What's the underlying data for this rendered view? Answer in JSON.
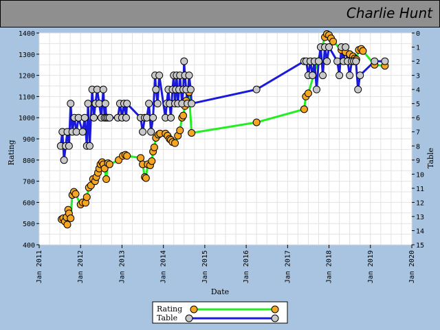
{
  "header": {
    "player_name": "Charlie Hunt"
  },
  "chart_data": {
    "type": "line",
    "title": "",
    "xlabel": "Date",
    "ylabel": "Rating",
    "y2label": "Table",
    "xlim": [
      "Jan 2011",
      "Jan 2020"
    ],
    "ylim": [
      400,
      1400
    ],
    "y2lim": [
      15,
      0
    ],
    "x_ticks": [
      "Jan 2011",
      "Jan 2012",
      "Jan 2013",
      "Jan 2014",
      "Jan 2015",
      "Jan 2016",
      "Jan 2017",
      "Jan 2018",
      "Jan 2019",
      "Jan 2020"
    ],
    "y_ticks": [
      400,
      500,
      600,
      700,
      800,
      900,
      1000,
      1100,
      1200,
      1300,
      1400
    ],
    "y2_ticks": [
      0,
      1,
      2,
      3,
      4,
      5,
      6,
      7,
      8,
      9,
      10,
      11,
      12,
      13,
      14,
      15
    ],
    "grid": true,
    "legend_position": "bottom-center",
    "series": [
      {
        "name": "Rating",
        "axis": "left",
        "line_color": "#22ee22",
        "marker_color": "#f5a623",
        "points": [
          [
            2011.54,
            520
          ],
          [
            2011.58,
            525
          ],
          [
            2011.62,
            510
          ],
          [
            2011.66,
            530
          ],
          [
            2011.68,
            495
          ],
          [
            2011.7,
            565
          ],
          [
            2011.72,
            548
          ],
          [
            2011.76,
            525
          ],
          [
            2011.8,
            635
          ],
          [
            2011.84,
            650
          ],
          [
            2011.88,
            640
          ],
          [
            2012.0,
            590
          ],
          [
            2012.05,
            600
          ],
          [
            2012.12,
            598
          ],
          [
            2012.15,
            625
          ],
          [
            2012.2,
            670
          ],
          [
            2012.25,
            680
          ],
          [
            2012.3,
            710
          ],
          [
            2012.35,
            700
          ],
          [
            2012.38,
            720
          ],
          [
            2012.42,
            740
          ],
          [
            2012.45,
            760
          ],
          [
            2012.48,
            780
          ],
          [
            2012.52,
            790
          ],
          [
            2012.55,
            780
          ],
          [
            2012.58,
            760
          ],
          [
            2012.62,
            710
          ],
          [
            2012.66,
            785
          ],
          [
            2012.7,
            780
          ],
          [
            2012.92,
            800
          ],
          [
            2013.02,
            820
          ],
          [
            2013.08,
            825
          ],
          [
            2013.12,
            820
          ],
          [
            2013.45,
            810
          ],
          [
            2013.5,
            780
          ],
          [
            2013.55,
            720
          ],
          [
            2013.58,
            715
          ],
          [
            2013.62,
            780
          ],
          [
            2013.68,
            775
          ],
          [
            2013.72,
            795
          ],
          [
            2013.75,
            840
          ],
          [
            2013.78,
            860
          ],
          [
            2013.82,
            905
          ],
          [
            2013.88,
            920
          ],
          [
            2013.92,
            925
          ],
          [
            2014.05,
            925
          ],
          [
            2014.1,
            915
          ],
          [
            2014.15,
            900
          ],
          [
            2014.18,
            895
          ],
          [
            2014.22,
            885
          ],
          [
            2014.28,
            880
          ],
          [
            2014.35,
            915
          ],
          [
            2014.4,
            940
          ],
          [
            2014.45,
            1000
          ],
          [
            2014.48,
            1010
          ],
          [
            2014.52,
            1055
          ],
          [
            2014.55,
            1080
          ],
          [
            2014.58,
            1130
          ],
          [
            2014.62,
            1120
          ],
          [
            2014.68,
            928
          ],
          [
            2016.25,
            978
          ],
          [
            2017.4,
            1040
          ],
          [
            2017.44,
            1100
          ],
          [
            2017.5,
            1115
          ],
          [
            2017.9,
            1380
          ],
          [
            2017.95,
            1395
          ],
          [
            2018.0,
            1390
          ],
          [
            2018.05,
            1375
          ],
          [
            2018.1,
            1360
          ],
          [
            2018.3,
            1320
          ],
          [
            2018.4,
            1310
          ],
          [
            2018.5,
            1300
          ],
          [
            2018.58,
            1290
          ],
          [
            2018.62,
            1280
          ],
          [
            2018.66,
            1275
          ],
          [
            2018.72,
            1320
          ],
          [
            2018.78,
            1325
          ],
          [
            2018.82,
            1315
          ],
          [
            2019.1,
            1250
          ],
          [
            2019.35,
            1245
          ]
        ]
      },
      {
        "name": "Table",
        "axis": "right",
        "line_color": "#1a1adc",
        "marker_color": "#c8c8c8",
        "points": [
          [
            2011.52,
            8
          ],
          [
            2011.56,
            7
          ],
          [
            2011.6,
            9
          ],
          [
            2011.64,
            8
          ],
          [
            2011.68,
            7
          ],
          [
            2011.72,
            8
          ],
          [
            2011.76,
            5
          ],
          [
            2011.8,
            7
          ],
          [
            2011.85,
            6
          ],
          [
            2011.9,
            7
          ],
          [
            2011.95,
            6
          ],
          [
            2012.05,
            7
          ],
          [
            2012.1,
            6
          ],
          [
            2012.15,
            8
          ],
          [
            2012.18,
            5
          ],
          [
            2012.22,
            8
          ],
          [
            2012.28,
            4
          ],
          [
            2012.32,
            6
          ],
          [
            2012.36,
            5
          ],
          [
            2012.4,
            4
          ],
          [
            2012.45,
            5
          ],
          [
            2012.5,
            6
          ],
          [
            2012.55,
            4
          ],
          [
            2012.58,
            6
          ],
          [
            2012.6,
            5
          ],
          [
            2012.62,
            6
          ],
          [
            2012.66,
            6
          ],
          [
            2012.7,
            6
          ],
          [
            2012.9,
            6
          ],
          [
            2012.95,
            5
          ],
          [
            2013.0,
            6
          ],
          [
            2013.05,
            5
          ],
          [
            2013.1,
            6
          ],
          [
            2013.12,
            5
          ],
          [
            2013.45,
            6
          ],
          [
            2013.5,
            7
          ],
          [
            2013.55,
            6
          ],
          [
            2013.6,
            6
          ],
          [
            2013.65,
            5
          ],
          [
            2013.7,
            7
          ],
          [
            2013.75,
            6
          ],
          [
            2013.8,
            3
          ],
          [
            2013.82,
            4
          ],
          [
            2013.86,
            5
          ],
          [
            2013.9,
            3
          ],
          [
            2014.05,
            6
          ],
          [
            2014.08,
            5
          ],
          [
            2014.12,
            4
          ],
          [
            2014.15,
            5
          ],
          [
            2014.18,
            6
          ],
          [
            2014.22,
            4
          ],
          [
            2014.25,
            3
          ],
          [
            2014.28,
            5
          ],
          [
            2014.3,
            4
          ],
          [
            2014.32,
            3
          ],
          [
            2014.35,
            5
          ],
          [
            2014.38,
            4
          ],
          [
            2014.4,
            3
          ],
          [
            2014.45,
            5
          ],
          [
            2014.48,
            4
          ],
          [
            2014.5,
            2
          ],
          [
            2014.52,
            3
          ],
          [
            2014.55,
            4
          ],
          [
            2014.58,
            5
          ],
          [
            2014.62,
            3
          ],
          [
            2014.66,
            4
          ],
          [
            2014.68,
            5
          ],
          [
            2016.25,
            4
          ],
          [
            2017.4,
            2
          ],
          [
            2017.45,
            2
          ],
          [
            2017.5,
            3
          ],
          [
            2017.55,
            2
          ],
          [
            2017.6,
            3
          ],
          [
            2017.65,
            2
          ],
          [
            2017.7,
            4
          ],
          [
            2017.75,
            2
          ],
          [
            2017.8,
            1
          ],
          [
            2017.85,
            3
          ],
          [
            2017.9,
            1
          ],
          [
            2017.95,
            2
          ],
          [
            2018.0,
            1
          ],
          [
            2018.2,
            2
          ],
          [
            2018.25,
            3
          ],
          [
            2018.3,
            1
          ],
          [
            2018.35,
            2
          ],
          [
            2018.4,
            1
          ],
          [
            2018.45,
            2
          ],
          [
            2018.5,
            3
          ],
          [
            2018.55,
            2
          ],
          [
            2018.6,
            2
          ],
          [
            2018.65,
            2
          ],
          [
            2018.7,
            4
          ],
          [
            2018.75,
            3
          ],
          [
            2019.1,
            2
          ],
          [
            2019.35,
            2
          ]
        ]
      }
    ]
  }
}
